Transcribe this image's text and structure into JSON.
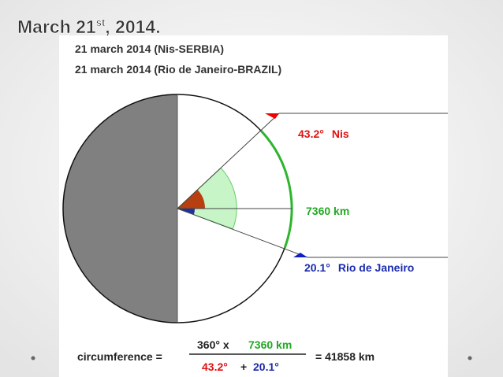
{
  "title": {
    "main": "March 21",
    "sup": "st",
    "tail": ", 2014."
  },
  "heading": [
    "21 march 2014 (Nis-SERBIA)",
    "21 march 2014 (Rio de Janeiro-BRAZIL)"
  ],
  "labels": {
    "nis_angle": "43.2°",
    "nis_name": "Nis",
    "distance": "7360 km",
    "rio_angle": "20.1°",
    "rio_name": "Rio de Janeiro"
  },
  "formula": {
    "lhs": "circumference =",
    "numerator": [
      "360° x",
      "7360 km"
    ],
    "denominator": [
      "43.2°",
      "+",
      "20.1°"
    ],
    "result": "= 41858 km"
  }
}
